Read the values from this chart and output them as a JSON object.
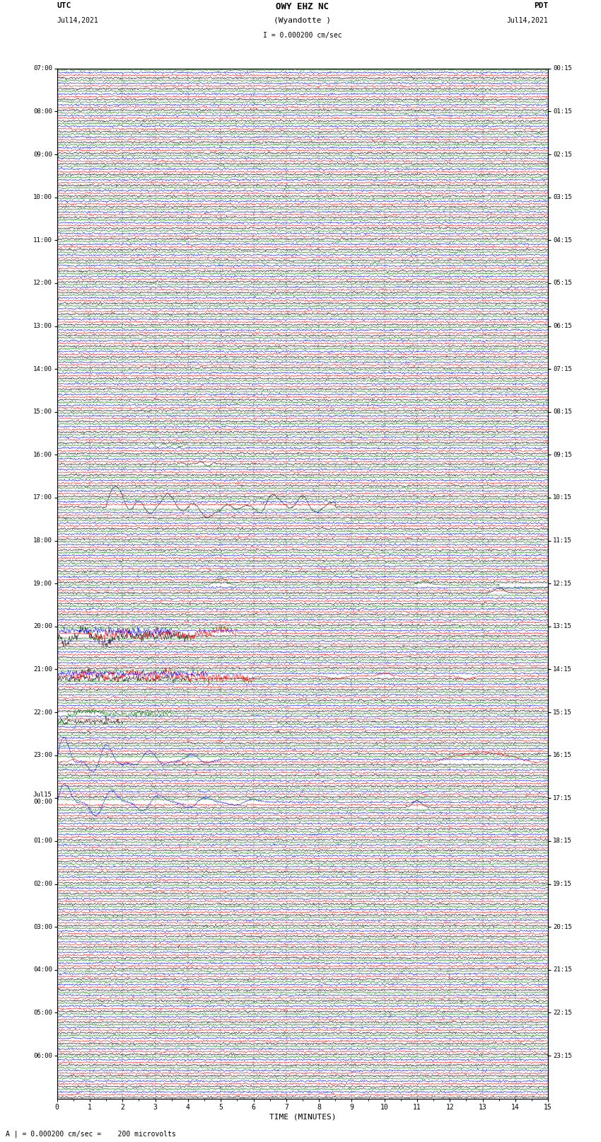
{
  "title_line1": "OWY EHZ NC",
  "title_line2": "(Wyandotte )",
  "scale_text": "I = 0.000200 cm/sec",
  "bottom_note": "A | = 0.000200 cm/sec =    200 microvolts",
  "left_label": "UTC",
  "left_date": "Jul14,2021",
  "right_label": "PDT",
  "right_date": "Jul14,2021",
  "xlabel": "TIME (MINUTES)",
  "xlim": [
    0,
    15
  ],
  "background_color": "#ffffff",
  "trace_colors": [
    "black",
    "red",
    "blue",
    "green"
  ],
  "grid_color": "#999999",
  "left_times_utc": [
    "07:00",
    "",
    "",
    "",
    "08:00",
    "",
    "",
    "",
    "09:00",
    "",
    "",
    "",
    "10:00",
    "",
    "",
    "",
    "11:00",
    "",
    "",
    "",
    "12:00",
    "",
    "",
    "",
    "13:00",
    "",
    "",
    "",
    "14:00",
    "",
    "",
    "",
    "15:00",
    "",
    "",
    "",
    "16:00",
    "",
    "",
    "",
    "17:00",
    "",
    "",
    "",
    "18:00",
    "",
    "",
    "",
    "19:00",
    "",
    "",
    "",
    "20:00",
    "",
    "",
    "",
    "21:00",
    "",
    "",
    "",
    "22:00",
    "",
    "",
    "",
    "23:00",
    "",
    "",
    "",
    "Jul15\n00:00",
    "",
    "",
    "",
    "01:00",
    "",
    "",
    "",
    "02:00",
    "",
    "",
    "",
    "03:00",
    "",
    "",
    "",
    "04:00",
    "",
    "",
    "",
    "05:00",
    "",
    "",
    "",
    "06:00",
    "",
    "",
    ""
  ],
  "right_times_pdt": [
    "00:15",
    "",
    "",
    "",
    "01:15",
    "",
    "",
    "",
    "02:15",
    "",
    "",
    "",
    "03:15",
    "",
    "",
    "",
    "04:15",
    "",
    "",
    "",
    "05:15",
    "",
    "",
    "",
    "06:15",
    "",
    "",
    "",
    "07:15",
    "",
    "",
    "",
    "08:15",
    "",
    "",
    "",
    "09:15",
    "",
    "",
    "",
    "10:15",
    "",
    "",
    "",
    "11:15",
    "",
    "",
    "",
    "12:15",
    "",
    "",
    "",
    "13:15",
    "",
    "",
    "",
    "14:15",
    "",
    "",
    "",
    "15:15",
    "",
    "",
    "",
    "16:15",
    "",
    "",
    "",
    "17:15",
    "",
    "",
    "",
    "18:15",
    "",
    "",
    "",
    "19:15",
    "",
    "",
    "",
    "20:15",
    "",
    "",
    "",
    "21:15",
    "",
    "",
    "",
    "22:15",
    "",
    "",
    "",
    "23:15",
    "",
    "",
    ""
  ],
  "num_rows": 96,
  "traces_per_row": 4
}
